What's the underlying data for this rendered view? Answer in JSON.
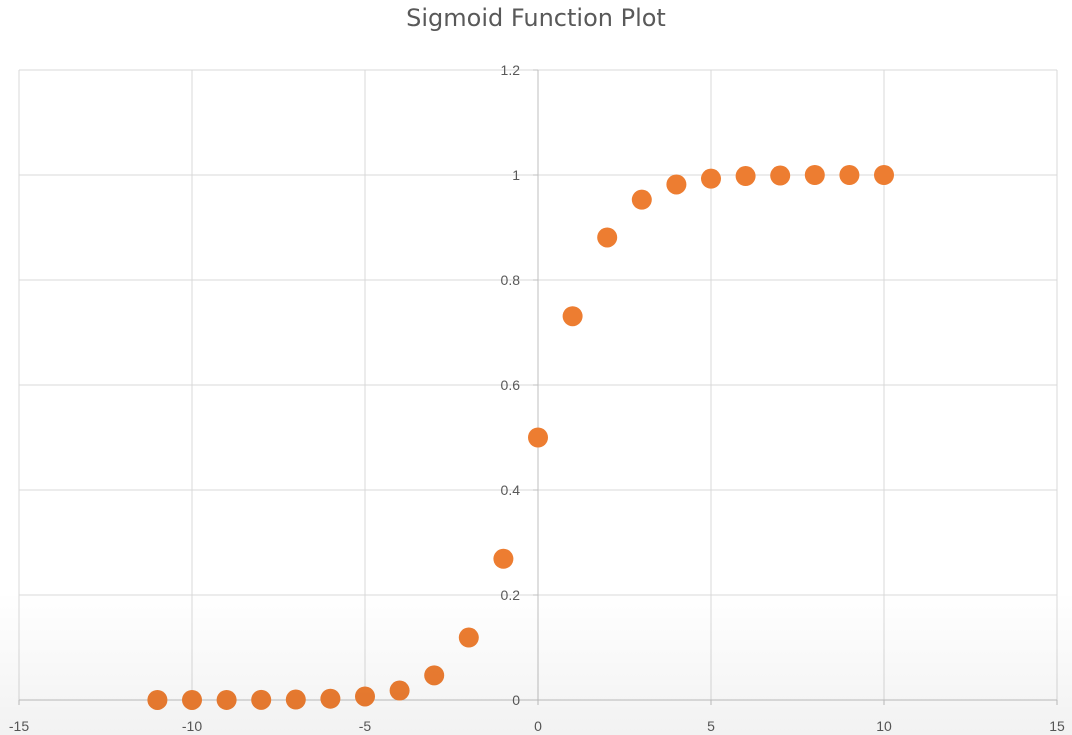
{
  "chart_data": {
    "type": "scatter",
    "title": "Sigmoid Function Plot",
    "xlabel": "",
    "ylabel": "",
    "xlim": [
      -15,
      15
    ],
    "ylim": [
      0,
      1.2
    ],
    "x_ticks": [
      -15,
      -10,
      -5,
      0,
      5,
      10,
      15
    ],
    "x_tick_labels": [
      "-15",
      "-10",
      "-5",
      "0",
      "5",
      "10",
      "15"
    ],
    "y_ticks": [
      0,
      0.2,
      0.4,
      0.6,
      0.8,
      1,
      1.2
    ],
    "y_tick_labels": [
      "0",
      "0.2",
      "0.4",
      "0.6",
      "0.8",
      "1",
      "1.2"
    ],
    "grid": true,
    "legend": "none",
    "marker_color": "#ED7D31",
    "x": [
      -11,
      -10,
      -9,
      -8,
      -7,
      -6,
      -5,
      -4,
      -3,
      -2,
      -1,
      0,
      1,
      2,
      3,
      4,
      5,
      6,
      7,
      8,
      9,
      10
    ],
    "y": [
      2e-05,
      5e-05,
      0.0001,
      0.0003,
      0.0009,
      0.0025,
      0.0067,
      0.018,
      0.047,
      0.119,
      0.269,
      0.5,
      0.731,
      0.881,
      0.953,
      0.982,
      0.993,
      0.998,
      0.999,
      1.0,
      1.0,
      1.0
    ]
  }
}
